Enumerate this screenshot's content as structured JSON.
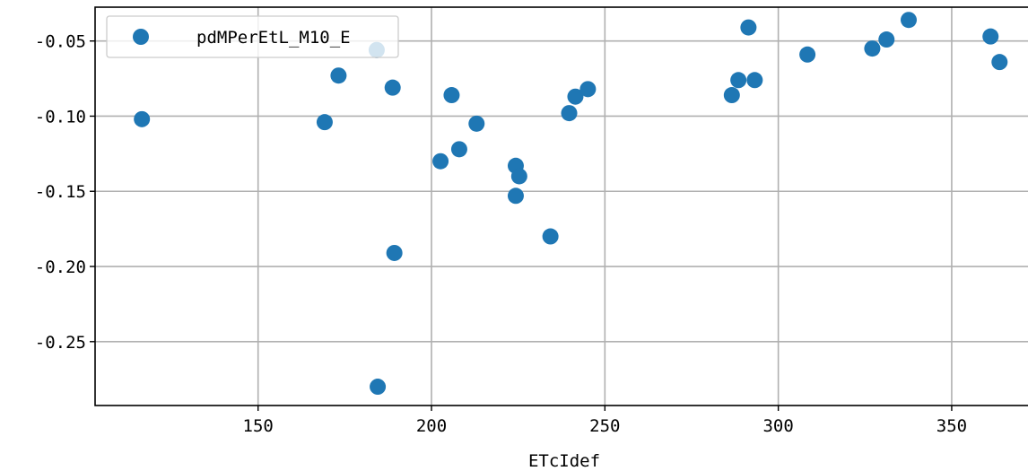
{
  "chart_data": {
    "type": "scatter",
    "title": "",
    "xlabel": "ETcIdef",
    "ylabel": "",
    "xlim": [
      103,
      372
    ],
    "ylim": [
      -0.2925,
      -0.0275
    ],
    "xticks": [
      150,
      200,
      250,
      300,
      350
    ],
    "yticks": [
      -0.05,
      -0.1,
      -0.15,
      -0.2,
      -0.25
    ],
    "ytick_labels": [
      "-0.05",
      "-0.10",
      "-0.15",
      "-0.20",
      "-0.25"
    ],
    "grid": true,
    "legend_position": "top-left",
    "series": [
      {
        "name": "pdMPerEtL_M10_E",
        "color": "#1f77b4",
        "points": [
          {
            "x": 116.5,
            "y": -0.102
          },
          {
            "x": 169.2,
            "y": -0.104
          },
          {
            "x": 173.2,
            "y": -0.073
          },
          {
            "x": 184.2,
            "y": -0.056
          },
          {
            "x": 184.5,
            "y": -0.28
          },
          {
            "x": 188.8,
            "y": -0.081
          },
          {
            "x": 189.3,
            "y": -0.191
          },
          {
            "x": 202.6,
            "y": -0.13
          },
          {
            "x": 205.8,
            "y": -0.086
          },
          {
            "x": 208.0,
            "y": -0.122
          },
          {
            "x": 213.0,
            "y": -0.105
          },
          {
            "x": 224.3,
            "y": -0.133
          },
          {
            "x": 224.3,
            "y": -0.153
          },
          {
            "x": 225.3,
            "y": -0.14
          },
          {
            "x": 234.3,
            "y": -0.18
          },
          {
            "x": 239.7,
            "y": -0.098
          },
          {
            "x": 241.5,
            "y": -0.087
          },
          {
            "x": 245.1,
            "y": -0.082
          },
          {
            "x": 286.6,
            "y": -0.086
          },
          {
            "x": 288.5,
            "y": -0.076
          },
          {
            "x": 291.4,
            "y": -0.041
          },
          {
            "x": 293.2,
            "y": -0.076
          },
          {
            "x": 308.4,
            "y": -0.059
          },
          {
            "x": 327.1,
            "y": -0.055
          },
          {
            "x": 331.2,
            "y": -0.049
          },
          {
            "x": 337.6,
            "y": -0.036
          },
          {
            "x": 361.2,
            "y": -0.047
          },
          {
            "x": 363.8,
            "y": -0.064
          }
        ]
      }
    ]
  }
}
